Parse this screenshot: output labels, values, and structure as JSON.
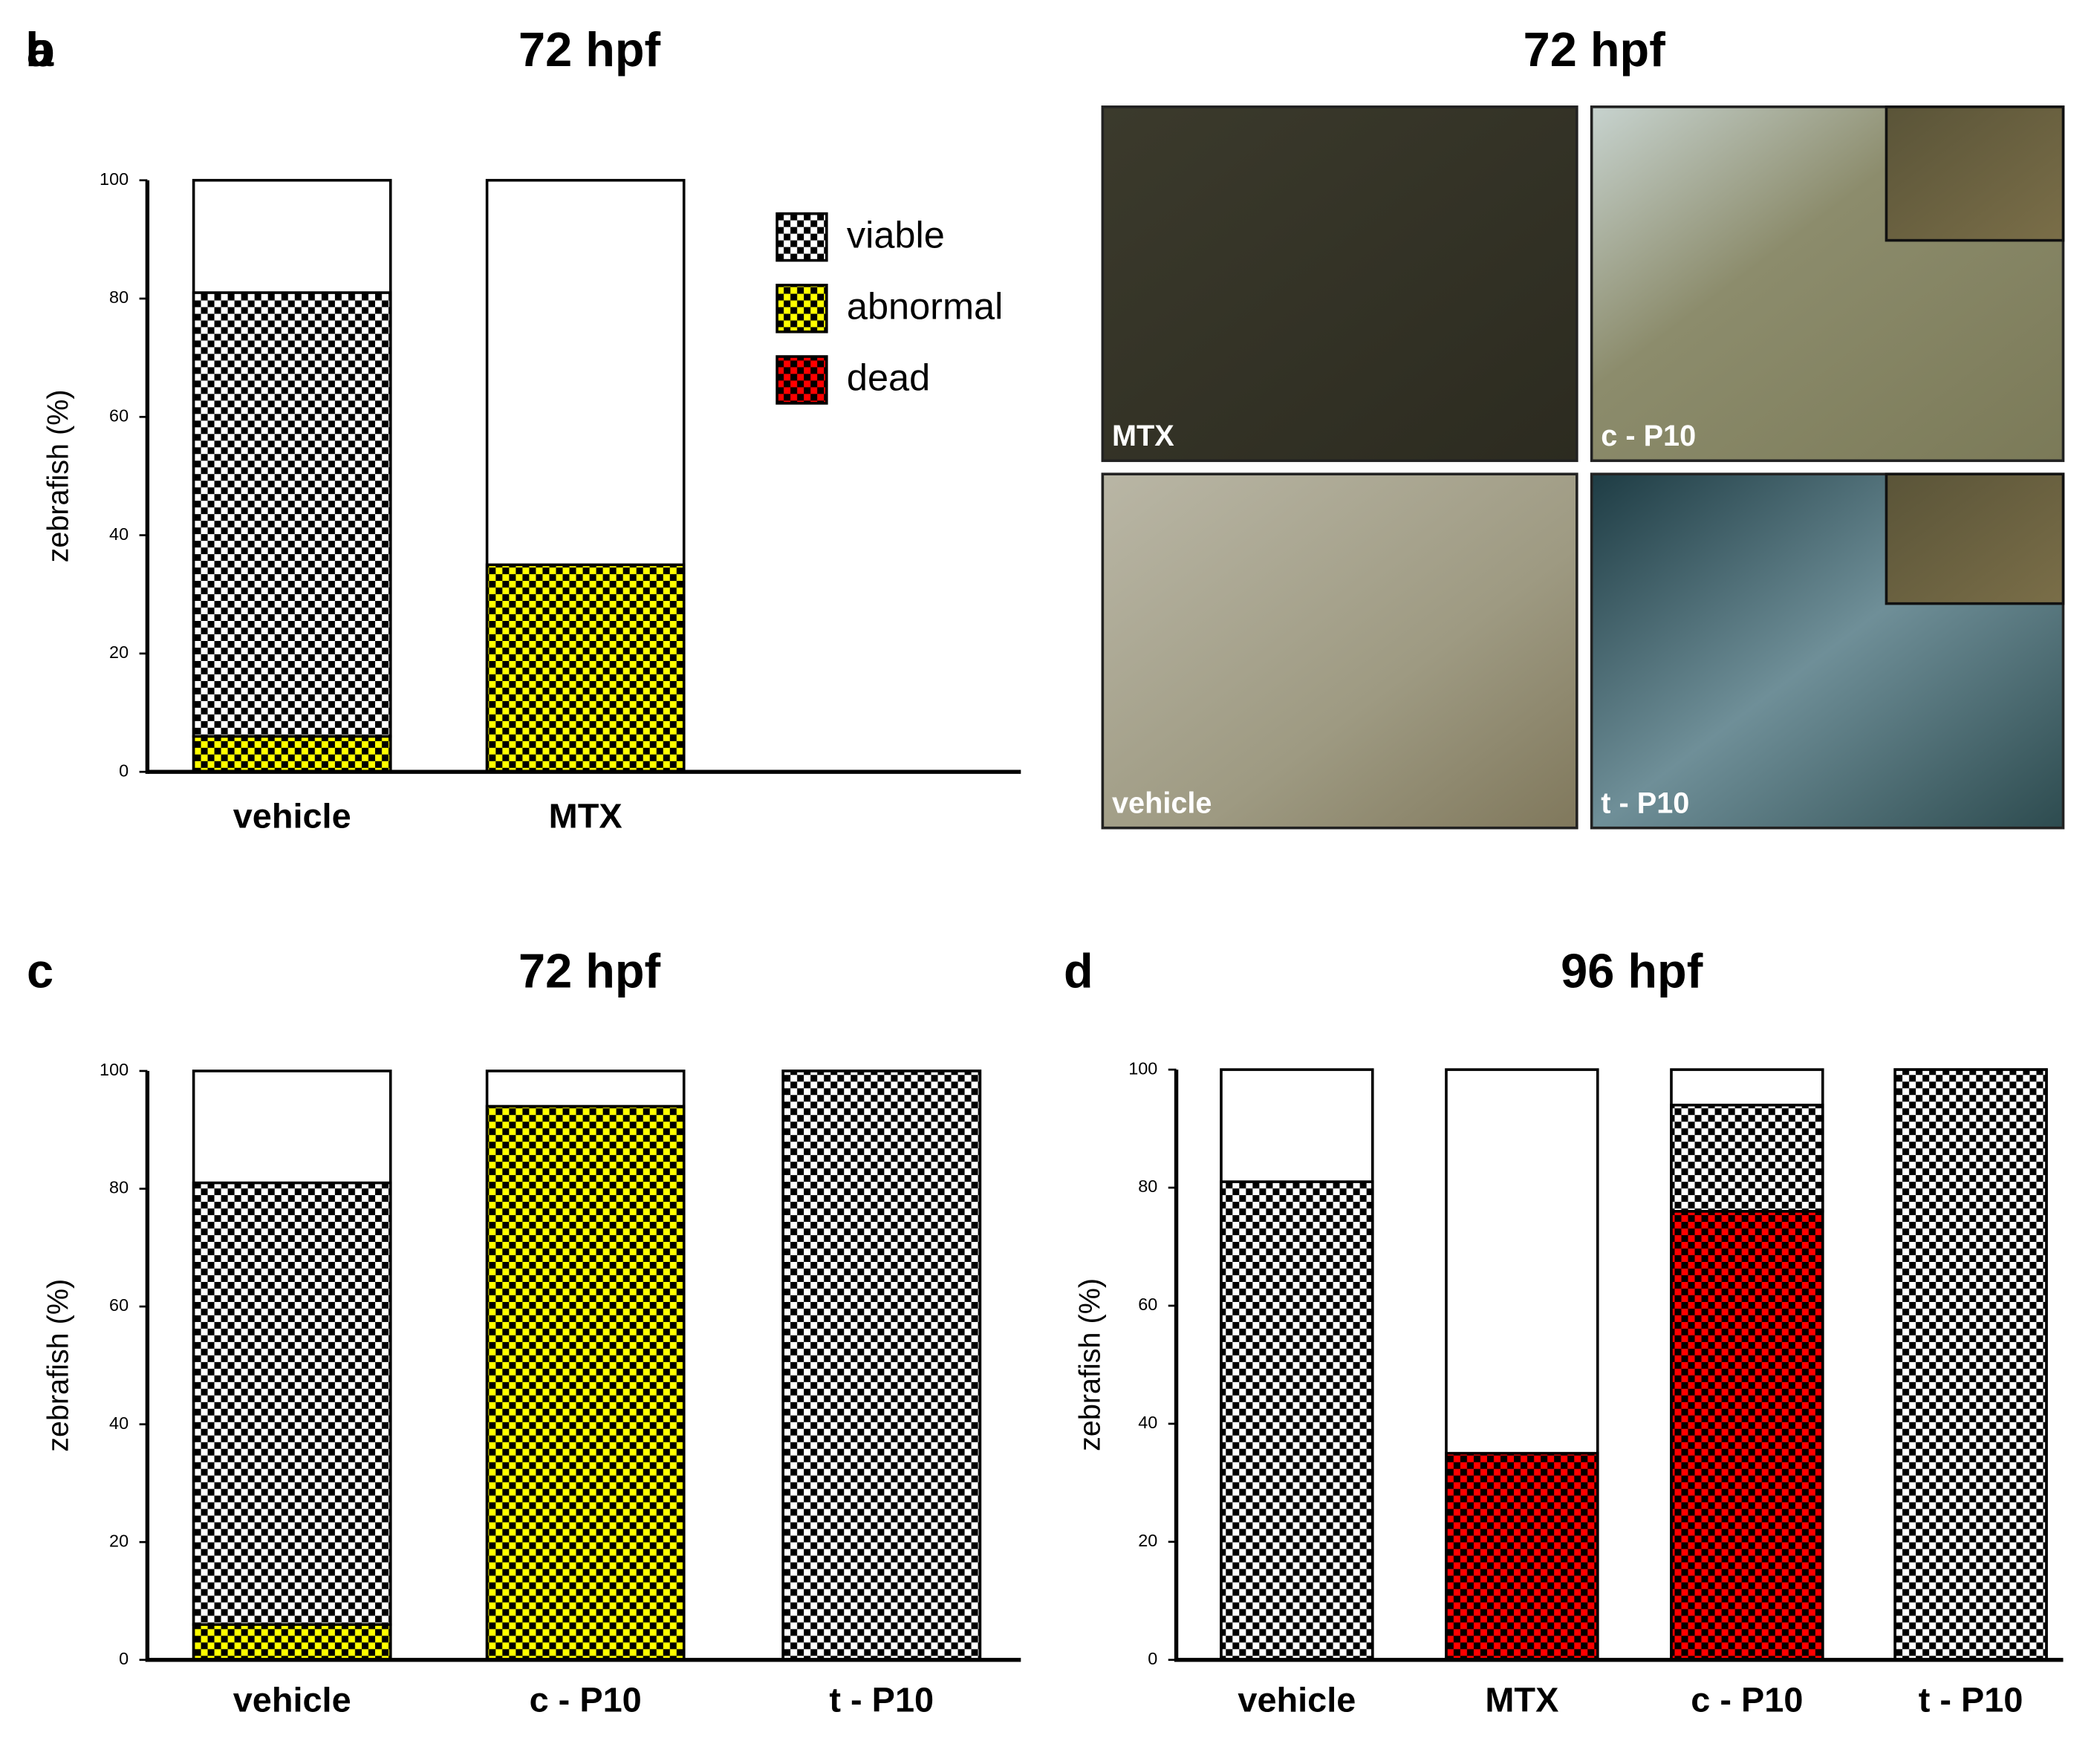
{
  "chart_data": [
    {
      "type": "bar",
      "stacked": true,
      "label": "a",
      "title": "72 hpf",
      "y_label": "zebrafish (%)",
      "categories": [
        "vehicle",
        "MTX"
      ],
      "series": [
        {
          "name": "viable",
          "color": "#ffffff",
          "values": [
            75,
            0
          ]
        },
        {
          "name": "abnormal",
          "color": "#ffff00",
          "values": [
            6,
            35
          ]
        },
        {
          "name": "dead",
          "color": "#ff0000",
          "values": [
            0,
            0
          ]
        }
      ],
      "ylim": [
        0,
        100
      ],
      "yticks": [
        0,
        20,
        40,
        60,
        80,
        100
      ],
      "legend": "upper right"
    },
    {
      "type": "bar",
      "stacked": true,
      "label": "c",
      "title": "72 hpf",
      "y_label": "zebrafish (%)",
      "categories": [
        "vehicle",
        "c - P10",
        "t - P10"
      ],
      "series": [
        {
          "color": "#ffffff",
          "values": [
            75,
            0,
            100
          ]
        },
        {
          "color": "#ffff00",
          "values": [
            6,
            94,
            0
          ]
        },
        {
          "color": "#ff0000",
          "values": [
            0,
            0,
            0
          ]
        }
      ],
      "ylim": [
        0,
        100
      ],
      "yticks": [
        0,
        20,
        40,
        60,
        80,
        100
      ]
    },
    {
      "type": "bar",
      "stacked": true,
      "label": "d",
      "title": "96 hpf",
      "y_label": "zebrafish (%)",
      "categories": [
        "vehicle",
        "MTX",
        "c - P10",
        "t - P10"
      ],
      "series": [
        {
          "color": "#ffffff",
          "values": [
            81,
            0,
            18,
            100
          ]
        },
        {
          "color": "#ffff00",
          "values": [
            0,
            0,
            0,
            0
          ]
        },
        {
          "color": "#ff0000",
          "values": [
            0,
            35,
            76,
            0
          ]
        }
      ],
      "ylim": [
        0,
        100
      ],
      "yticks": [
        0,
        20,
        40,
        60,
        80,
        100
      ]
    }
  ],
  "photo_panel": {
    "label": "b",
    "title": "72 hpf",
    "images": [
      {
        "label": "MTX"
      },
      {
        "label": "c - P10"
      },
      {
        "label": "vehicle"
      },
      {
        "label": "t - P10"
      }
    ]
  }
}
